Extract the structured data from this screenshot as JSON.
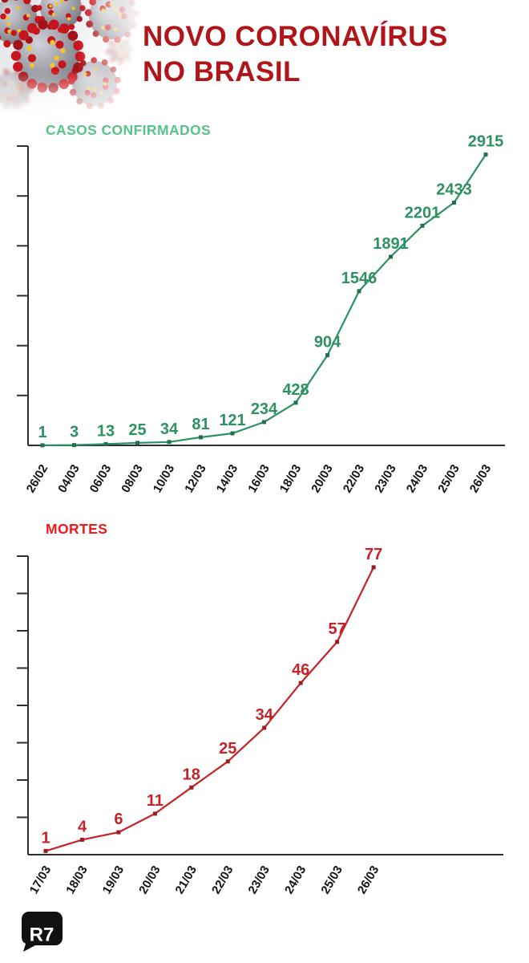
{
  "header": {
    "title_line1": "NOVO CORONAVÍRUS",
    "title_line2": "NO BRASIL",
    "title_color": "#b11419"
  },
  "chart_data": [
    {
      "type": "line",
      "title": "CASOS CONFIRMADOS",
      "title_color": "#57c38a",
      "line_color": "#2e9161",
      "marker_color": "#20714a",
      "axis_color": "#2e2e2e",
      "tick_label_color": "#131313",
      "categories": [
        "26/02",
        "04/03",
        "06/03",
        "08/03",
        "10/03",
        "12/03",
        "14/03",
        "16/03",
        "18/03",
        "20/03",
        "22/03",
        "23/03",
        "24/03",
        "25/03",
        "26/03"
      ],
      "values": [
        1,
        3,
        13,
        25,
        34,
        81,
        121,
        234,
        428,
        904,
        1546,
        1891,
        2201,
        2433,
        2915
      ],
      "xlabel": "",
      "ylabel": "",
      "ylim": [
        0,
        3000
      ],
      "ytick_step": 500,
      "grid": false,
      "legend": false,
      "data_labels": true
    },
    {
      "type": "line",
      "title": "MORTES",
      "title_color": "#f5161c",
      "line_color": "#c4232a",
      "marker_color": "#9c1b21",
      "axis_color": "#2e2e2e",
      "tick_label_color": "#131313",
      "categories": [
        "17/03",
        "18/03",
        "19/03",
        "20/03",
        "21/03",
        "22/03",
        "23/03",
        "24/03",
        "25/03",
        "26/03"
      ],
      "values": [
        1,
        4,
        6,
        11,
        18,
        25,
        34,
        46,
        57,
        77
      ],
      "xlabel": "",
      "ylabel": "",
      "ylim": [
        0,
        80
      ],
      "ytick_step": 10,
      "grid": false,
      "legend": false,
      "data_labels": true
    }
  ],
  "footer": {
    "logo_text": "R7",
    "logo_bg": "#111111",
    "logo_fg": "#ffffff"
  }
}
